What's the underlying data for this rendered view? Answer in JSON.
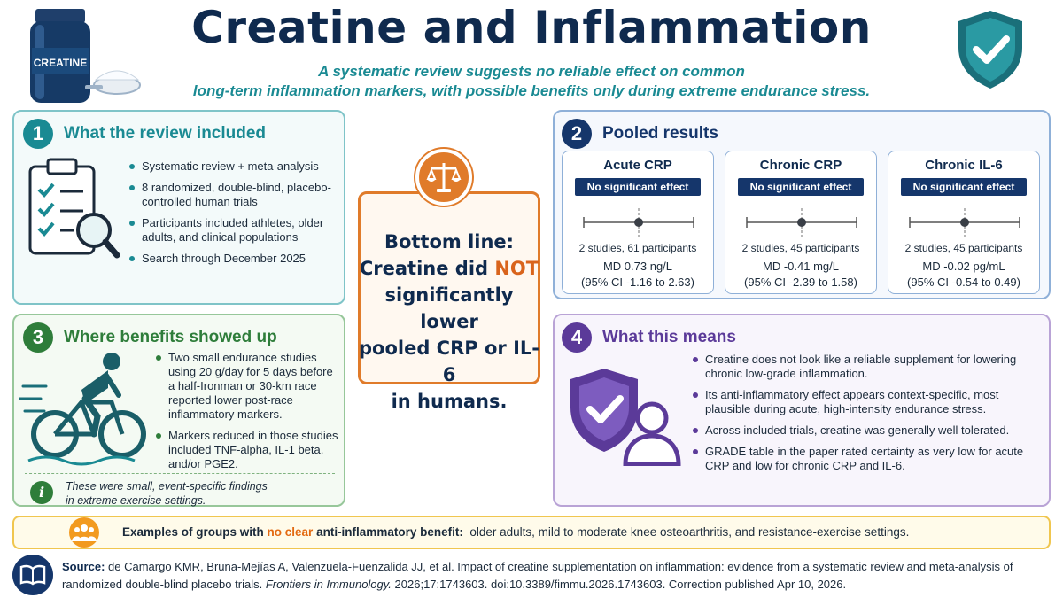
{
  "header": {
    "title": "Creatine and Inflammation",
    "subtitle_line1": "A systematic review suggests no reliable effect on common",
    "subtitle_line2": "long-term inflammation markers, with possible benefits only during extreme endurance stress.",
    "jar_label": "CREATINE"
  },
  "panel1": {
    "number": "1",
    "title": "What the review included",
    "bullets": [
      "Systematic review + meta-analysis",
      "8 randomized, double-blind, placebo-controlled human trials",
      "Participants included athletes, older adults, and clinical populations",
      "Search through December 2025"
    ]
  },
  "center": {
    "line1": "Bottom line:",
    "line2a": "Creatine did ",
    "line2b": "NOT",
    "line3": "significantly lower",
    "line4": "pooled CRP or IL-6",
    "line5": "in humans."
  },
  "panel2": {
    "number": "2",
    "title": "Pooled results",
    "results": [
      {
        "title": "Acute CRP",
        "badge": "No significant effect",
        "studies": "2 studies, 61 participants",
        "md": "MD 0.73 ng/L",
        "ci": "(95% CI -1.16 to 2.63)",
        "estimate": 0.73,
        "ci_low": -1.16,
        "ci_high": 2.63
      },
      {
        "title": "Chronic CRP",
        "badge": "No significant effect",
        "studies": "2 studies, 45 participants",
        "md": "MD -0.41 mg/L",
        "ci": "(95% CI -2.39 to 1.58)",
        "estimate": -0.41,
        "ci_low": -2.39,
        "ci_high": 1.58
      },
      {
        "title": "Chronic IL-6",
        "badge": "No significant effect",
        "studies": "2 studies, 45 participants",
        "md": "MD -0.02 pg/mL",
        "ci": "(95% CI -0.54 to 0.49)",
        "estimate": -0.02,
        "ci_low": -0.54,
        "ci_high": 0.49
      }
    ]
  },
  "panel3": {
    "number": "3",
    "title": "Where benefits showed up",
    "bullets": [
      "Two small endurance studies using 20 g/day for 5 days before a half-Ironman or 30-km race reported lower post-race inflammatory markers.",
      "Markers reduced in those studies included TNF-alpha, IL-1 beta, and/or PGE2."
    ],
    "note_line1": "These were small, event-specific findings",
    "note_line2": "in extreme exercise settings."
  },
  "panel4": {
    "number": "4",
    "title": "What this means",
    "bullets": [
      "Creatine does not look like a reliable supplement for lowering chronic low-grade inflammation.",
      "Its anti-inflammatory effect appears context-specific, most plausible during acute, high-intensity endurance stress.",
      "Across included trials, creatine was generally well tolerated.",
      "GRADE table in the paper rated certainty as very low for acute CRP and low for chronic CRP and IL-6."
    ]
  },
  "banner": {
    "lead": "Examples of groups with ",
    "highlight": "no clear",
    "lead_end": " anti-inflammatory benefit:",
    "rest": "older adults, mild to moderate knee osteoarthritis, and resistance-exercise settings."
  },
  "source": {
    "label": "Source:",
    "text1": "de Camargo KMR, Bruna-Mejías A, Valenzuela-Fuenzalida JJ, et al. Impact of creatine supplementation on inflammation: evidence from a systematic review and meta-analysis of randomized double-blind placebo trials.",
    "journal": "Frontiers in Immunology.",
    "text2": "2026;17:1743603. doi:10.3389/fimmu.2026.1743603. Correction published Apr 10, 2026."
  },
  "colors": {
    "navy": "#0f2a4e",
    "teal": "#1a8a93",
    "green": "#2e7d3a",
    "purple": "#5b3a99",
    "orange": "#e07b2a",
    "yellow": "#f0c64f"
  }
}
